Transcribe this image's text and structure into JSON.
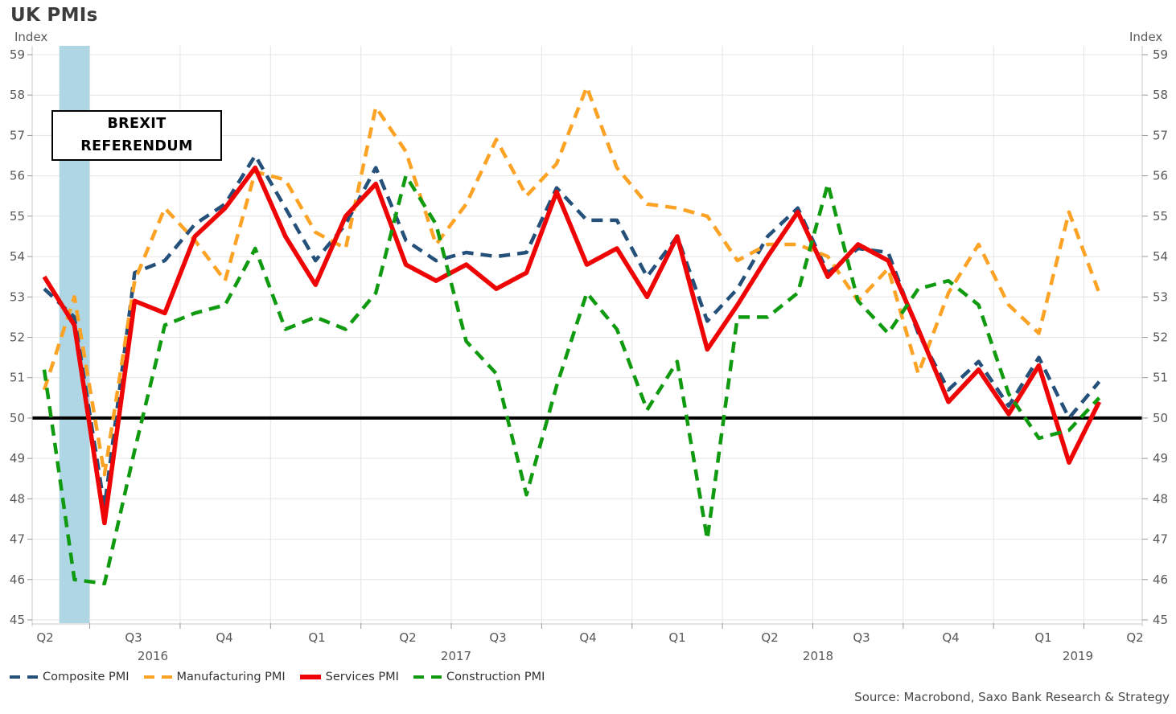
{
  "page_title": "UK PMIs",
  "axes": {
    "y_left_label": "Index",
    "y_right_label": "Index",
    "y_ticks": [
      59,
      58,
      57,
      56,
      55,
      54,
      53,
      52,
      51,
      50,
      49,
      48,
      47,
      46,
      45
    ],
    "x_quarter_labels": [
      "Q2",
      "Q3",
      "Q4",
      "Q1",
      "Q2",
      "Q3",
      "Q4",
      "Q1",
      "Q2",
      "Q3",
      "Q4",
      "Q1",
      "Q2"
    ],
    "x_year_labels": [
      "2016",
      "2017",
      "2018",
      "2019"
    ]
  },
  "annotation": {
    "text": "BREXIT REFERENDUM"
  },
  "reference_line": {
    "value": 50
  },
  "legend": {
    "items": [
      {
        "label": "Composite PMI",
        "color": "#24507a",
        "style": "dashed"
      },
      {
        "label": "Manufacturing PMI",
        "color": "#fca326",
        "style": "dashed"
      },
      {
        "label": "Services PMI",
        "color": "#ee0404",
        "style": "solid"
      },
      {
        "label": "Construction PMI",
        "color": "#0f9a0f",
        "style": "dashed"
      }
    ]
  },
  "source": "Source: Macrobond, Saxo Bank Research & Strategy",
  "colors": {
    "band": "#aed6e4",
    "gridline": "#e4e4e4",
    "axis_frame": "#c9c9c9",
    "tick": "#9a9a9a",
    "label": "#595959",
    "reference_line": "#000000"
  },
  "chart_data": {
    "type": "line",
    "title": "UK PMIs",
    "ylabel": "Index",
    "ylim": [
      45,
      59
    ],
    "grid": true,
    "legend_position": "bottom",
    "reference_line_y": 50,
    "x_months": [
      "2016-05",
      "2016-06",
      "2016-07",
      "2016-08",
      "2016-09",
      "2016-10",
      "2016-11",
      "2016-12",
      "2017-01",
      "2017-02",
      "2017-03",
      "2017-04",
      "2017-05",
      "2017-06",
      "2017-07",
      "2017-08",
      "2017-09",
      "2017-10",
      "2017-11",
      "2017-12",
      "2018-01",
      "2018-02",
      "2018-03",
      "2018-04",
      "2018-05",
      "2018-06",
      "2018-07",
      "2018-08",
      "2018-09",
      "2018-10",
      "2018-11",
      "2018-12",
      "2019-01",
      "2019-02",
      "2019-03",
      "2019-04"
    ],
    "annotations": [
      {
        "type": "vertical-band",
        "text": "BREXIT REFERENDUM",
        "x_month": "2016-06"
      }
    ],
    "series": [
      {
        "name": "Composite PMI",
        "color": "#24507a",
        "line_style": "dashed",
        "values": [
          53.2,
          52.5,
          47.8,
          53.6,
          53.9,
          54.8,
          55.3,
          56.5,
          55.2,
          53.9,
          54.8,
          56.2,
          54.4,
          53.9,
          54.1,
          54.0,
          54.1,
          55.7,
          54.9,
          54.9,
          53.5,
          54.5,
          52.4,
          53.2,
          54.5,
          55.2,
          53.6,
          54.2,
          54.1,
          52.1,
          50.7,
          51.4,
          50.3,
          51.5,
          50.0,
          50.9
        ]
      },
      {
        "name": "Manufacturing PMI",
        "color": "#fca326",
        "line_style": "dashed",
        "values": [
          50.7,
          53.0,
          48.6,
          53.4,
          55.2,
          54.4,
          53.4,
          56.1,
          55.9,
          54.6,
          54.2,
          57.7,
          56.6,
          54.3,
          55.3,
          56.9,
          55.5,
          56.3,
          58.2,
          56.2,
          55.3,
          55.2,
          55.0,
          53.9,
          54.3,
          54.3,
          54.0,
          52.9,
          53.7,
          51.1,
          53.1,
          54.3,
          52.8,
          52.1,
          55.1,
          53.1
        ]
      },
      {
        "name": "Services PMI",
        "color": "#ee0404",
        "line_style": "solid",
        "values": [
          53.5,
          52.3,
          47.4,
          52.9,
          52.6,
          54.5,
          55.2,
          56.2,
          54.5,
          53.3,
          55.0,
          55.8,
          53.8,
          53.4,
          53.8,
          53.2,
          53.6,
          55.6,
          53.8,
          54.2,
          53.0,
          54.5,
          51.7,
          52.8,
          54.0,
          55.1,
          53.5,
          54.3,
          53.9,
          52.2,
          50.4,
          51.2,
          50.1,
          51.3,
          48.9,
          50.4
        ]
      },
      {
        "name": "Construction PMI",
        "color": "#0f9a0f",
        "line_style": "dashed",
        "values": [
          51.2,
          46.0,
          45.9,
          49.2,
          52.3,
          52.6,
          52.8,
          54.2,
          52.2,
          52.5,
          52.2,
          53.1,
          56.0,
          54.8,
          51.9,
          51.1,
          48.1,
          50.8,
          53.1,
          52.2,
          50.2,
          51.4,
          47.0,
          52.5,
          52.5,
          53.1,
          55.8,
          52.9,
          52.1,
          53.2,
          53.4,
          52.8,
          50.6,
          49.5,
          49.7,
          50.5
        ]
      }
    ]
  }
}
